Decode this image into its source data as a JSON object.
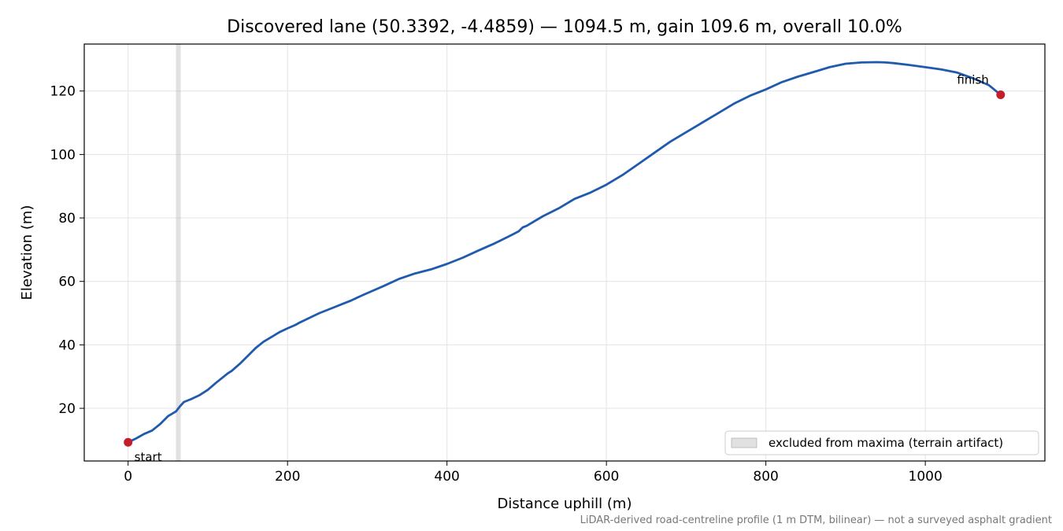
{
  "chart_data": {
    "type": "line",
    "title": "Discovered lane (50.3392, -4.4859) — 1094.5 m, gain 109.6 m, overall 10.0%",
    "xlabel": "Distance uphill (m)",
    "ylabel": "Elevation (m)",
    "xlim": [
      -55,
      1150
    ],
    "ylim": [
      3.4,
      134.8
    ],
    "xticks": [
      0,
      200,
      400,
      600,
      800,
      1000
    ],
    "yticks": [
      20,
      40,
      60,
      80,
      100,
      120
    ],
    "grid": true,
    "legend_position": "lower-right",
    "series": [
      {
        "color": "#1f5aad",
        "x": [
          0,
          10,
          20,
          30,
          40,
          50,
          60,
          65,
          70,
          75,
          80,
          90,
          100,
          110,
          120,
          125,
          130,
          140,
          150,
          160,
          170,
          180,
          190,
          200,
          210,
          215,
          220,
          230,
          240,
          250,
          260,
          270,
          280,
          290,
          300,
          320,
          340,
          360,
          380,
          400,
          420,
          440,
          460,
          480,
          490,
          495,
          500,
          520,
          540,
          560,
          580,
          600,
          620,
          640,
          660,
          680,
          700,
          720,
          740,
          760,
          780,
          800,
          820,
          840,
          860,
          880,
          900,
          920,
          940,
          950,
          960,
          980,
          1000,
          1020,
          1040,
          1060,
          1080,
          1094.5
        ],
        "y": [
          9.3,
          10.5,
          11.9,
          13.0,
          15.0,
          17.5,
          19.0,
          20.6,
          22.0,
          22.5,
          23.0,
          24.2,
          25.8,
          28.0,
          30.0,
          31.0,
          31.8,
          34.0,
          36.5,
          39.0,
          41.0,
          42.5,
          44.0,
          45.2,
          46.3,
          47.0,
          47.6,
          48.8,
          50.0,
          51.0,
          52.0,
          53.0,
          54.0,
          55.2,
          56.3,
          58.5,
          60.8,
          62.5,
          63.8,
          65.5,
          67.5,
          69.8,
          72.0,
          74.5,
          75.8,
          77.0,
          77.5,
          80.5,
          83.0,
          86.0,
          88.0,
          90.5,
          93.5,
          97.0,
          100.5,
          104.0,
          107.0,
          110.0,
          113.0,
          116.0,
          118.5,
          120.5,
          122.8,
          124.5,
          126.0,
          127.5,
          128.6,
          129.0,
          129.1,
          129.0,
          128.8,
          128.2,
          127.5,
          126.8,
          125.8,
          124.0,
          121.8,
          118.8
        ]
      }
    ],
    "excluded_band": {
      "x0": 60,
      "x1": 66,
      "label": "excluded from maxima (terrain artifact)"
    },
    "markers": [
      {
        "name": "start",
        "label": "start",
        "x": 0,
        "y": 9.3,
        "color": "#c41e2a"
      },
      {
        "name": "finish",
        "label": "finish",
        "x": 1094.5,
        "y": 118.8,
        "color": "#c41e2a"
      }
    ]
  },
  "caption": "LiDAR-derived road-centreline profile (1 m DTM, bilinear) — not a surveyed asphalt gradient"
}
